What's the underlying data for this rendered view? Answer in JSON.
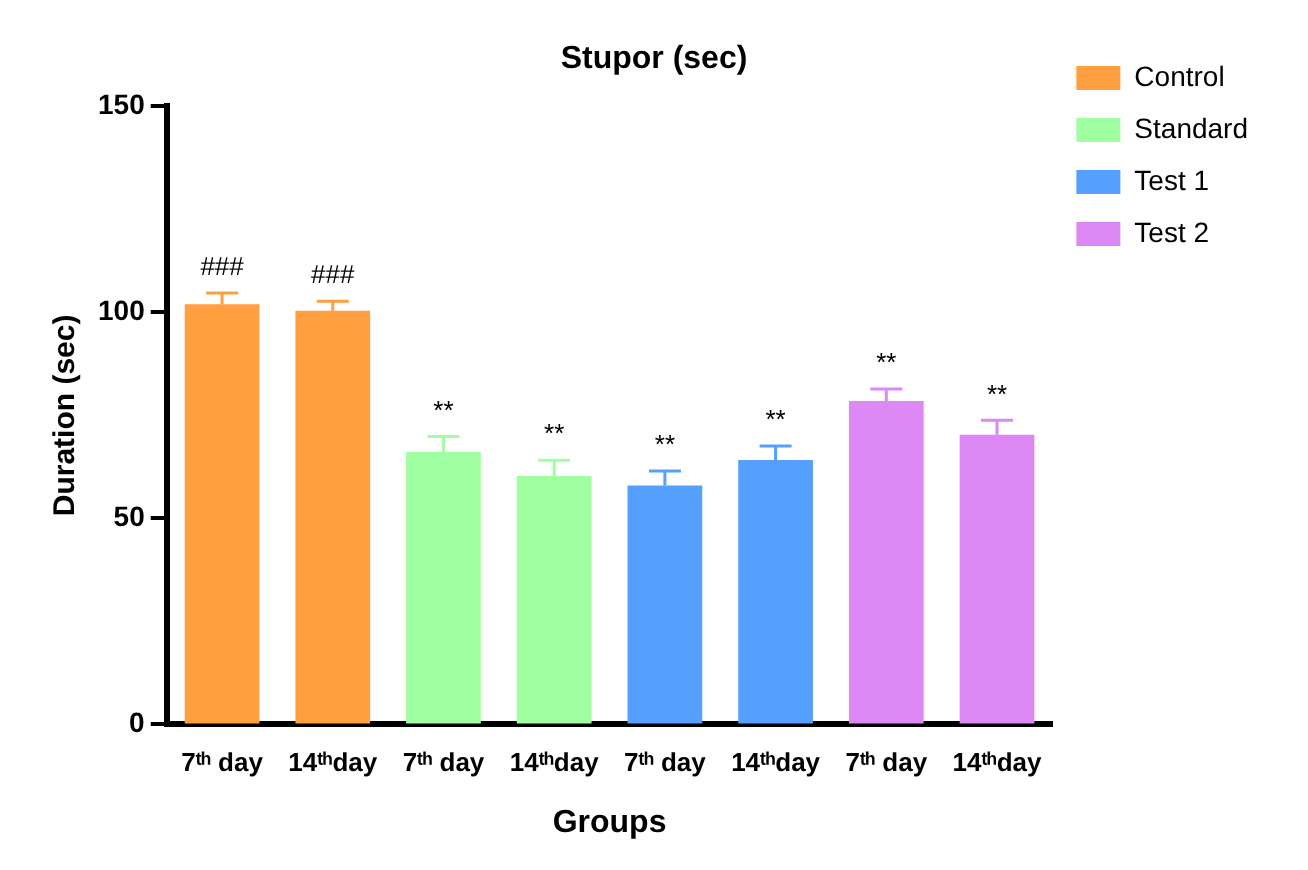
{
  "chart_data": {
    "type": "bar",
    "title": "Stupor (sec)",
    "xlabel": "Groups",
    "ylabel": "Duration (sec)",
    "categories": [
      "7ᵗʰ day",
      "14ᵗʰday",
      "7ᵗʰ day",
      "14ᵗʰday",
      "7ᵗʰ day",
      "14ᵗʰday",
      "7ᵗʰ day",
      "14ᵗʰday"
    ],
    "series": [
      {
        "name": "Control",
        "color": "#ff9f40",
        "values": [
          102,
          100.4,
          null,
          null,
          null,
          null,
          null,
          null
        ],
        "errors": [
          2.7,
          2.3,
          null,
          null,
          null,
          null,
          null,
          null
        ],
        "value_labels": [
          "###",
          "###",
          null,
          null,
          null,
          null,
          null,
          null
        ]
      },
      {
        "name": "Standard",
        "color": "#a0ffa0",
        "values": [
          null,
          null,
          66.1,
          60.3,
          null,
          null,
          null,
          null
        ],
        "errors": [
          null,
          null,
          3.8,
          3.8,
          null,
          null,
          null,
          null
        ],
        "value_labels": [
          null,
          null,
          "**",
          "**",
          null,
          null,
          null,
          null
        ]
      },
      {
        "name": "Test 1",
        "color": "#55a0ff",
        "values": [
          null,
          null,
          null,
          null,
          58,
          64.2,
          null,
          null
        ],
        "errors": [
          null,
          null,
          null,
          null,
          3.5,
          3.4,
          null,
          null
        ],
        "value_labels": [
          null,
          null,
          null,
          null,
          "**",
          "**",
          null,
          null
        ]
      },
      {
        "name": "Test 2",
        "color": "#dd88f5",
        "values": [
          null,
          null,
          null,
          null,
          null,
          null,
          78.5,
          70.3
        ],
        "errors": [
          null,
          null,
          null,
          null,
          null,
          null,
          2.9,
          3.5
        ],
        "value_labels": [
          null,
          null,
          null,
          null,
          null,
          null,
          "**",
          "**"
        ]
      }
    ],
    "ylim": [
      0,
      150
    ],
    "yticks": [
      0,
      50,
      100,
      150
    ],
    "grid": false,
    "legend": "top right"
  }
}
